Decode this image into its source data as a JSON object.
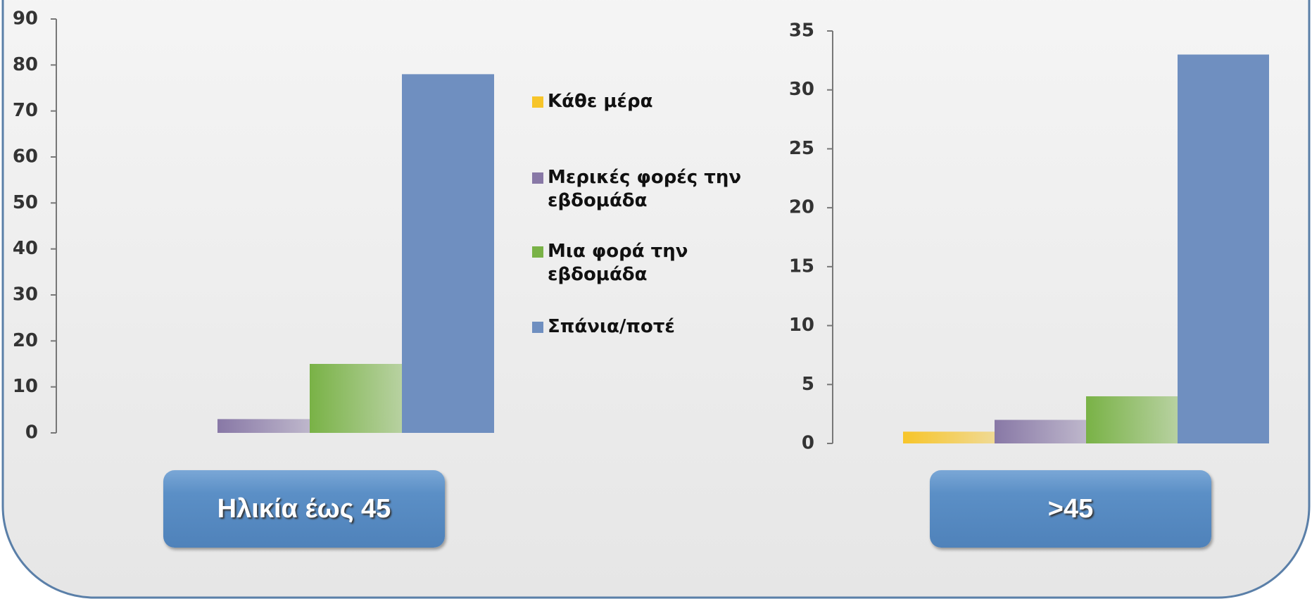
{
  "legend": {
    "series": [
      {
        "name": "Κάθε μέρα",
        "color": "#f7c52a"
      },
      {
        "name": "Μερικές φορές την εβδομάδα",
        "color": "#8878a6"
      },
      {
        "name": "Μια φορά την εβδομάδα",
        "color": "#79b246"
      },
      {
        "name": "Σπάνια/ποτέ",
        "color": "#6f8fc0"
      }
    ]
  },
  "chart_data": [
    {
      "type": "bar",
      "category": "Ηλικία έως 45",
      "values": [
        0,
        3,
        15,
        78
      ],
      "ylim": [
        0,
        90
      ],
      "yticks": [
        0,
        10,
        20,
        30,
        40,
        50,
        60,
        70,
        80,
        90
      ]
    },
    {
      "type": "bar",
      "category": ">45",
      "values": [
        1,
        2,
        4,
        33
      ],
      "ylim": [
        0,
        35
      ],
      "yticks": [
        0,
        5,
        10,
        15,
        20,
        25,
        30,
        35
      ]
    }
  ]
}
